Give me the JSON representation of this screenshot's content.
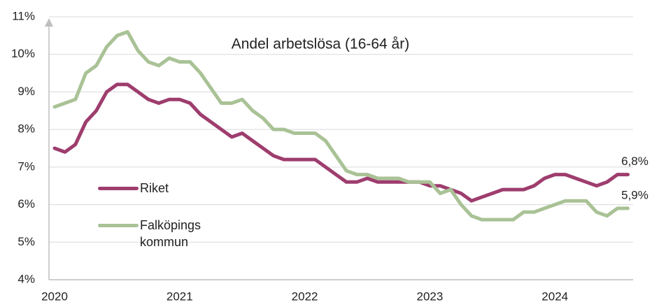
{
  "chart_data": {
    "type": "line",
    "title": "Andel arbetslösa (16-64 år)",
    "categories": [
      "2020",
      null,
      null,
      null,
      null,
      null,
      null,
      null,
      null,
      null,
      null,
      null,
      "2021",
      null,
      null,
      null,
      null,
      null,
      null,
      null,
      null,
      null,
      null,
      null,
      "2022",
      null,
      null,
      null,
      null,
      null,
      null,
      null,
      null,
      null,
      null,
      null,
      "2023",
      null,
      null,
      null,
      null,
      null,
      null,
      null,
      null,
      null,
      null,
      null,
      "2024",
      null,
      null,
      null,
      null,
      null,
      null,
      null
    ],
    "series": [
      {
        "name": "Riket",
        "color": "#9e3d6e",
        "values": [
          7.5,
          7.4,
          7.6,
          8.2,
          8.5,
          9.0,
          9.2,
          9.2,
          9.0,
          8.8,
          8.7,
          8.8,
          8.8,
          8.7,
          8.4,
          8.2,
          8.0,
          7.8,
          7.9,
          7.7,
          7.5,
          7.3,
          7.2,
          7.2,
          7.2,
          7.2,
          7.0,
          6.8,
          6.6,
          6.6,
          6.7,
          6.6,
          6.6,
          6.6,
          6.6,
          6.6,
          6.5,
          6.5,
          6.4,
          6.3,
          6.1,
          6.2,
          6.3,
          6.4,
          6.4,
          6.4,
          6.5,
          6.7,
          6.8,
          6.8,
          6.7,
          6.6,
          6.5,
          6.6,
          6.8,
          6.8
        ],
        "value_labels": [
          null,
          null,
          null,
          null,
          null,
          null,
          null,
          null,
          null,
          null,
          null,
          null,
          null,
          null,
          null,
          null,
          null,
          null,
          null,
          null,
          null,
          null,
          null,
          null,
          null,
          null,
          null,
          null,
          null,
          null,
          null,
          null,
          null,
          null,
          null,
          null,
          null,
          null,
          null,
          null,
          null,
          null,
          null,
          null,
          null,
          null,
          null,
          null,
          null,
          null,
          null,
          null,
          null,
          null,
          null,
          "6,8%"
        ]
      },
      {
        "name": "Falköpings kommun",
        "color": "#a9c296",
        "values": [
          8.6,
          8.7,
          8.8,
          9.5,
          9.7,
          10.2,
          10.5,
          10.6,
          10.1,
          9.8,
          9.7,
          9.9,
          9.8,
          9.8,
          9.5,
          9.1,
          8.7,
          8.7,
          8.8,
          8.5,
          8.3,
          8.0,
          8.0,
          7.9,
          7.9,
          7.9,
          7.7,
          7.3,
          6.9,
          6.8,
          6.8,
          6.7,
          6.7,
          6.7,
          6.6,
          6.6,
          6.6,
          6.3,
          6.4,
          6.0,
          5.7,
          5.6,
          5.6,
          5.6,
          5.6,
          5.8,
          5.8,
          5.9,
          6.0,
          6.1,
          6.1,
          6.1,
          5.8,
          5.7,
          5.9,
          5.9
        ],
        "value_labels": [
          null,
          null,
          null,
          null,
          null,
          null,
          null,
          null,
          null,
          null,
          null,
          null,
          null,
          null,
          null,
          null,
          null,
          null,
          null,
          null,
          null,
          null,
          null,
          null,
          null,
          null,
          null,
          null,
          null,
          null,
          null,
          null,
          null,
          null,
          null,
          null,
          null,
          null,
          null,
          null,
          null,
          null,
          null,
          null,
          null,
          null,
          null,
          null,
          null,
          null,
          null,
          null,
          null,
          null,
          null,
          "5,9%"
        ]
      }
    ],
    "ylim": [
      4,
      11
    ],
    "yticks": [
      {
        "value": 4,
        "label": "4%"
      },
      {
        "value": 5,
        "label": "5%"
      },
      {
        "value": 6,
        "label": "6%"
      },
      {
        "value": 7,
        "label": "7%"
      },
      {
        "value": 8,
        "label": "8%"
      },
      {
        "value": 9,
        "label": "9%"
      },
      {
        "value": 10,
        "label": "10%"
      },
      {
        "value": 11,
        "label": "11%"
      }
    ],
    "grid": true
  }
}
